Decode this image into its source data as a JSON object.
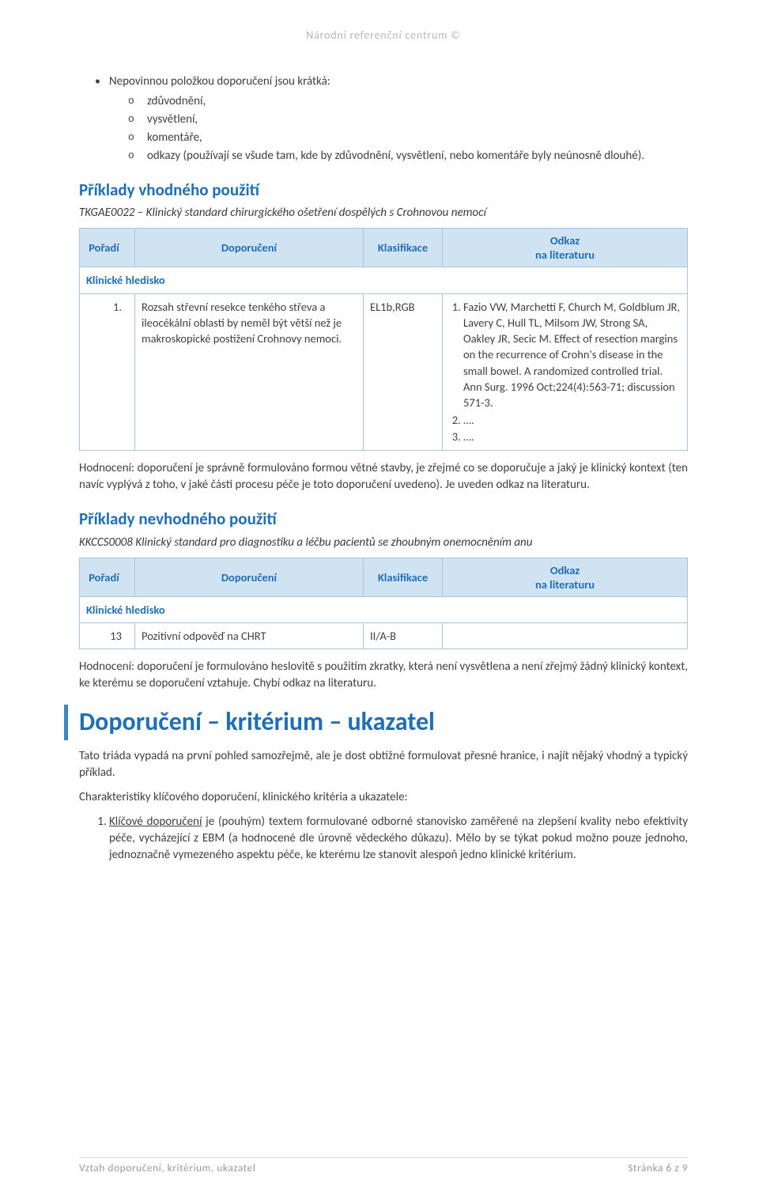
{
  "header": {
    "text": "Národní referenční centrum ©"
  },
  "top_bullet": {
    "lead": "Nepovinnou položkou doporučení jsou krátká:",
    "subs": [
      "zdůvodnění,",
      "vysvětlení,",
      "komentáře,",
      "odkazy (používají se všude tam, kde by zdůvodnění, vysvětlení, nebo komentáře byly neúnosně dlouhé)."
    ]
  },
  "example_good": {
    "heading": "Příklady vhodného použití",
    "subtitle": "TKGAE0022 – Klinický standard chirurgického ošetření dospělých s Crohnovou nemocí",
    "table": {
      "headers": {
        "poradi": "Pořadí",
        "doporuceni": "Doporučení",
        "klasifikace": "Klasifikace",
        "odkaz_l1": "Odkaz",
        "odkaz_l2": "na literaturu"
      },
      "section_label": "Klinické hledisko",
      "row": {
        "poradi": "1.",
        "doporuceni": "Rozsah střevní resekce tenkého střeva a ileocékální oblasti by neměl být větší než je makroskopické postižení Crohnovy nemoci.",
        "klasifikace": "EL1b,RGB",
        "refs": [
          "Fazio VW, Marchetti F, Church M, Goldblum JR, Lavery C, Hull TL, Milsom JW, Strong SA, Oakley JR, Secic M. Effect of resection margins on the recurrence of Crohn's disease in the small bowel. A randomized controlled trial. Ann Surg. 1996 Oct;224(4):563-71; discussion 571-3.",
          "….",
          "…."
        ]
      }
    },
    "evaluation": "Hodnocení: doporučení je správně formulováno formou větné stavby, je zřejmé co se doporučuje a jaký je klinický kontext (ten navíc vyplývá z toho, v jaké části procesu péče je toto doporučení uvedeno). Je uveden odkaz na literaturu."
  },
  "example_bad": {
    "heading": "Příklady nevhodného použití",
    "subtitle": "KKCCS0008 Klinický standard pro diagnostiku a léčbu pacientů se zhoubným onemocněním anu",
    "table": {
      "headers": {
        "poradi": "Pořadí",
        "doporuceni": "Doporučení",
        "klasifikace": "Klasifikace",
        "odkaz_l1": "Odkaz",
        "odkaz_l2": "na literaturu"
      },
      "section_label": "Klinické hledisko",
      "row": {
        "poradi": "13",
        "doporuceni": "Pozitivní odpověď na CHRT",
        "klasifikace": "II/A-B",
        "odkaz": ""
      }
    },
    "evaluation": "Hodnocení: doporučení je formulováno heslovitě s použitím zkratky, která není vysvětlena a není zřejmý žádný klinický kontext, ke kterému se doporučení vztahuje. Chybí odkaz na literaturu."
  },
  "triad": {
    "heading": "Doporučení – kritérium – ukazatel",
    "p1": "Tato triáda vypadá na první pohled samozřejmě, ale je dost obtížné formulovat přesné hranice, i najít nějaký vhodný a typický příklad.",
    "p2": "Charakteristiky klíčového doporučení, klinického kritéria a ukazatele:",
    "item_lead": "Klíčové doporučení",
    "item_rest": " je (pouhým) textem formulované odborné stanovisko zaměřené na zlepšení kvality nebo efektivity péče, vycházející z EBM (a hodnocené dle úrovně vědeckého důkazu). Mělo by se týkat pokud možno pouze jednoho, jednoznačně vymezeného aspektu péče, ke kterému lze stanovit alespoň jedno klinické kritérium."
  },
  "footer": {
    "left": "Vztah doporučení, kritérium, ukazatel",
    "right": "Stránka 6 z 9"
  },
  "colors": {
    "heading_blue": "#1f6fb8",
    "table_header_bg": "#d0e3f2",
    "table_border": "#a8c6df",
    "muted_gray": "#b8b8b8",
    "footer_gray": "#9a9a9a",
    "body_text": "#404040"
  }
}
